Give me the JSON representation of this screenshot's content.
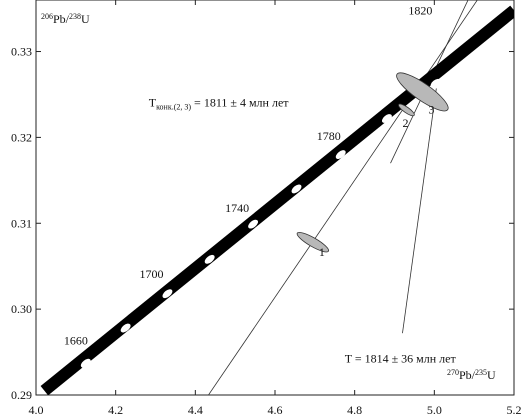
{
  "chart_data": {
    "type": "scatter",
    "title": "",
    "xlabel": {
      "mass_x": "270",
      "element_x": "Pb/",
      "mass_u": "235",
      "element_u": "U"
    },
    "ylabel": {
      "mass_x": "206",
      "element_x": "Pb/",
      "mass_u": "238",
      "element_u": "U"
    },
    "xlim": [
      4.0,
      5.2
    ],
    "ylim": [
      0.29,
      0.336
    ],
    "x_ticks": [
      "4.0",
      "4.2",
      "4.4",
      "4.6",
      "4.8",
      "5.0",
      "5.2"
    ],
    "y_ticks": [
      "0.29",
      "0.30",
      "0.31",
      "0.32",
      "0.33"
    ],
    "grid": false,
    "concordia": {
      "points": [
        {
          "x": 4.021,
          "y": 0.2905
        },
        {
          "x": 5.2,
          "y": 0.3348
        }
      ],
      "age_markers": [
        {
          "x": 4.125,
          "y": 0.2937
        },
        {
          "x": 4.225,
          "y": 0.2978
        },
        {
          "x": 4.33,
          "y": 0.3018
        },
        {
          "x": 4.436,
          "y": 0.3058
        },
        {
          "x": 4.545,
          "y": 0.3099
        },
        {
          "x": 4.654,
          "y": 0.314
        },
        {
          "x": 4.765,
          "y": 0.318
        },
        {
          "x": 4.881,
          "y": 0.3222
        },
        {
          "x": 5.003,
          "y": 0.3263
        },
        {
          "x": 5.125,
          "y": 0.3304
        }
      ],
      "age_labels": [
        {
          "text": "1660",
          "x": 4.1,
          "y": 0.2959
        },
        {
          "text": "1700",
          "x": 4.29,
          "y": 0.3036
        },
        {
          "text": "1740",
          "x": 4.505,
          "y": 0.3113
        },
        {
          "text": "1780",
          "x": 4.735,
          "y": 0.3197
        },
        {
          "text": "1820",
          "x": 4.965,
          "y": 0.3343
        }
      ]
    },
    "discordia_lines": [
      {
        "points": [
          {
            "x": 4.43,
            "y": 0.2898
          },
          {
            "x": 5.13,
            "y": 0.3375
          }
        ]
      },
      {
        "points": [
          {
            "x": 4.89,
            "y": 0.317
          },
          {
            "x": 5.1,
            "y": 0.3375
          }
        ]
      },
      {
        "points": [
          {
            "x": 5.005,
            "y": 0.3257
          },
          {
            "x": 4.92,
            "y": 0.2972
          }
        ]
      }
    ],
    "data_ellipses": [
      {
        "label": "1",
        "x": 4.695,
        "y": 0.3078,
        "rx": 0.011,
        "ry": 0.0021,
        "rotation_deg": -60,
        "label_x": 4.71,
        "label_y": 0.3062
      },
      {
        "label": "2",
        "x": 4.93,
        "y": 0.3232,
        "rx": 0.007,
        "ry": 0.0011,
        "rotation_deg": -55,
        "label_x": 4.92,
        "label_y": 0.3212
      },
      {
        "label": "3",
        "x": 4.97,
        "y": 0.3253,
        "rx": 0.021,
        "ry": 0.0036,
        "rotation_deg": -55,
        "label_x": 4.985,
        "label_y": 0.3228
      }
    ],
    "annotations": [
      {
        "main": "T",
        "sub": "конк.(2, 3)",
        "rest": " = 1811 ± 4 млн лет",
        "x": 4.283,
        "y": 0.3236
      },
      {
        "main": "T",
        "sub": "",
        "rest": " = 1814 ± 36 млн лет",
        "x": 4.775,
        "y": 0.2938
      }
    ]
  }
}
